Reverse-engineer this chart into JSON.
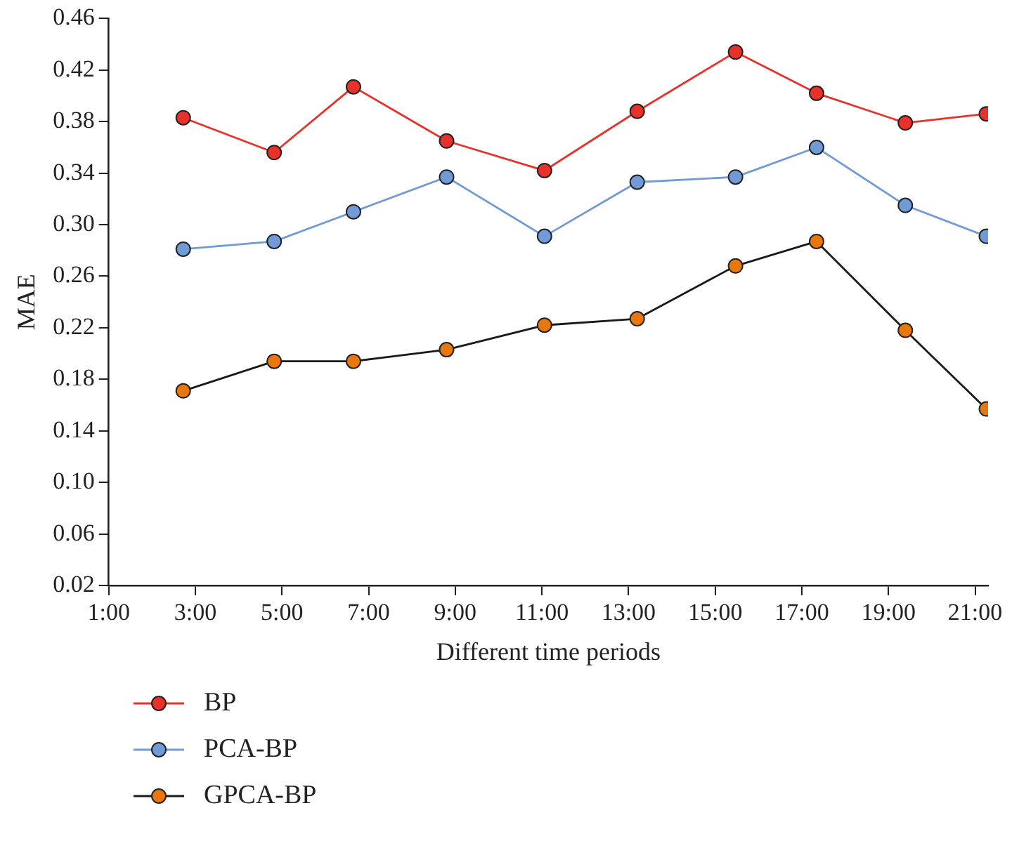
{
  "chart_data": {
    "type": "line",
    "xlabel": "Different time periods",
    "ylabel": "MAE",
    "xlim": [
      1,
      21.3
    ],
    "xticks": [
      {
        "value": 1,
        "label": "1:00"
      },
      {
        "value": 3,
        "label": "3:00"
      },
      {
        "value": 5,
        "label": "5:00"
      },
      {
        "value": 7,
        "label": "7:00"
      },
      {
        "value": 9,
        "label": "9:00"
      },
      {
        "value": 11,
        "label": "11:00"
      },
      {
        "value": 13,
        "label": "13:00"
      },
      {
        "value": 15,
        "label": "15:00"
      },
      {
        "value": 17,
        "label": "17:00"
      },
      {
        "value": 19,
        "label": "19:00"
      },
      {
        "value": 21,
        "label": "21:00"
      }
    ],
    "ylim": [
      0.02,
      0.46
    ],
    "yticks": [
      0.02,
      0.06,
      {
        "value": 0.1,
        "label": "0.10"
      },
      0.14,
      0.18,
      0.22,
      0.26,
      {
        "value": 0.3,
        "label": "0.30"
      },
      0.34,
      0.38,
      0.42,
      0.46
    ],
    "x": [
      2.72,
      4.82,
      6.65,
      8.8,
      11.06,
      13.2,
      15.47,
      17.34,
      19.39,
      21.26
    ],
    "series": [
      {
        "name": "BP",
        "color": "#e8312a",
        "values": [
          0.383,
          0.356,
          0.407,
          0.365,
          0.342,
          0.388,
          0.434,
          0.402,
          0.379,
          0.386
        ]
      },
      {
        "name": "PCA-BP",
        "color": "#719bd6",
        "values": [
          0.281,
          0.287,
          0.31,
          0.337,
          0.291,
          0.333,
          0.337,
          0.36,
          0.315,
          0.291
        ]
      },
      {
        "name": "GPCA-BP",
        "color": "#1a1a1a",
        "colors": [
          "#e8770e",
          "#e8770e",
          "#e8770e",
          "#e8770e",
          "#e8770e",
          "#e8770e",
          "#e8770e",
          "#e8770e",
          "#e8770e",
          "#e8770e"
        ],
        "values": [
          0.171,
          0.194,
          0.194,
          0.203,
          0.222,
          0.227,
          0.268,
          0.287,
          0.218,
          0.157
        ]
      }
    ],
    "marker": "circle",
    "grid": false,
    "legend": "bottom left"
  }
}
